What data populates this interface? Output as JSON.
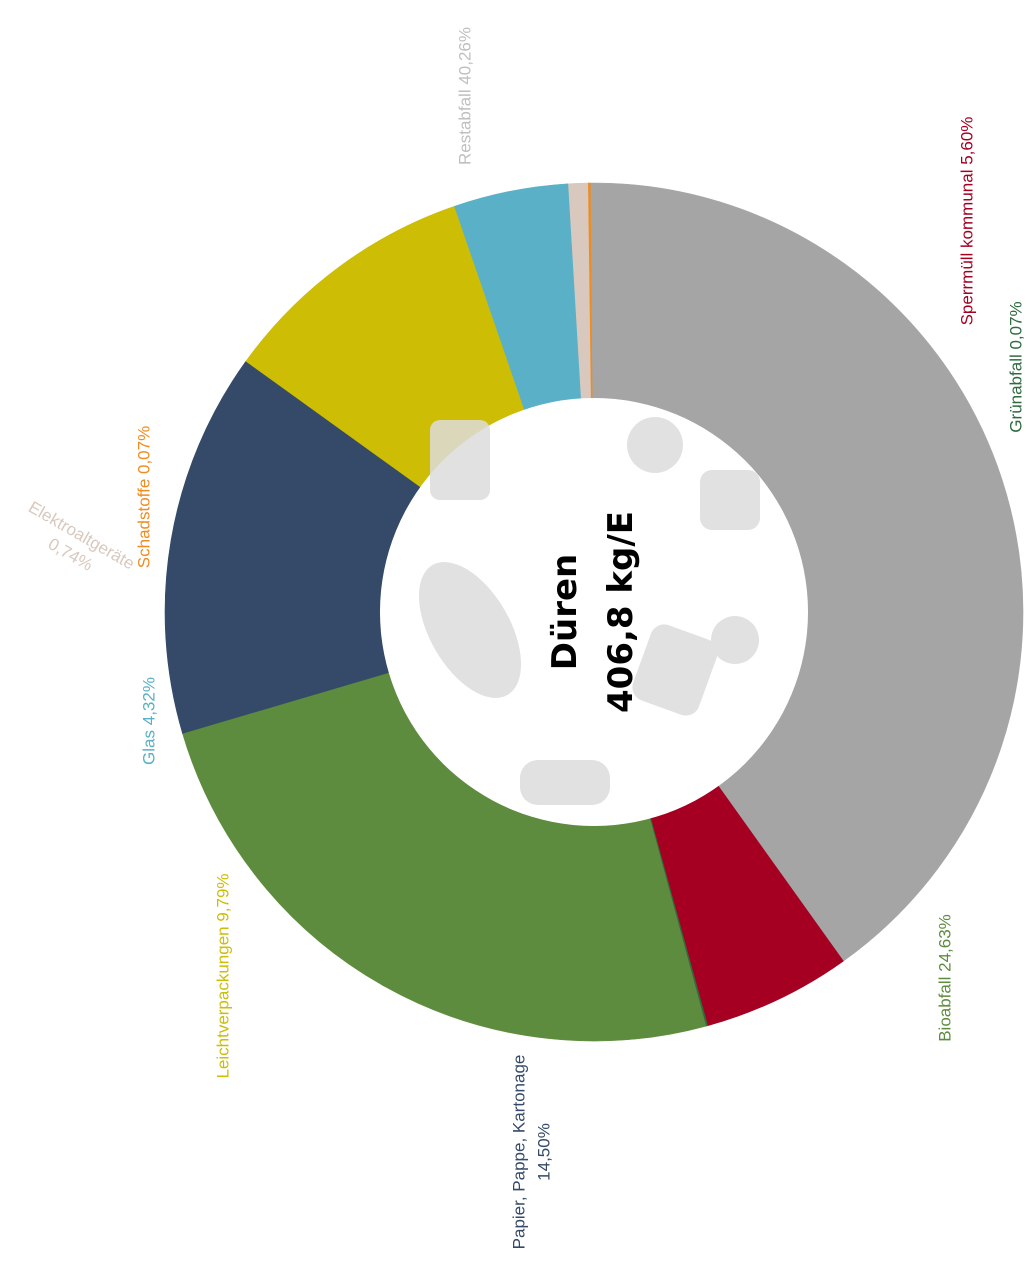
{
  "chart_data": {
    "type": "pie",
    "variant": "donut",
    "center_title": "Düren",
    "center_value": "406,8 kg/E",
    "slices": [
      {
        "key": "restabfall",
        "label": "Restabfall 40,26%",
        "value": 40.26,
        "color": "#a5a5a5",
        "label_color": "#bfbfbf"
      },
      {
        "key": "sperrmuell",
        "label": "Sperrmüll kommunal 5,60%",
        "value": 5.6,
        "color": "#a50021",
        "label_color": "#a50021"
      },
      {
        "key": "gruenabfall",
        "label": "Grünabfall 0,07%",
        "value": 0.07,
        "color": "#2e6b3f",
        "label_color": "#2e6b3f"
      },
      {
        "key": "bioabfall",
        "label": "Bioabfall 24,63%",
        "value": 24.63,
        "color": "#5e8c3e",
        "label_color": "#5e8c3e"
      },
      {
        "key": "ppk",
        "label": "Papier, Pappe, Kartonage",
        "label2": "14,50%",
        "value": 14.5,
        "color": "#344a68",
        "label_color": "#344a68"
      },
      {
        "key": "lvp",
        "label": "Leichtverpackungen 9,79%",
        "value": 9.79,
        "color": "#cdbd05",
        "label_color": "#cdbd05"
      },
      {
        "key": "glas",
        "label": "Glas 4,32%",
        "value": 4.32,
        "color": "#5ab0c7",
        "label_color": "#5ab0c7"
      },
      {
        "key": "elektro",
        "label": "Elektroaltgeräte",
        "label2": "0,74%",
        "value": 0.74,
        "color": "#d8c8bd",
        "label_color": "#d8c8bd"
      },
      {
        "key": "schadstoffe",
        "label": "Schadstoffe 0,07%",
        "value": 0.07,
        "color": "#f08c1e",
        "label_color": "#f08c1e"
      }
    ]
  }
}
